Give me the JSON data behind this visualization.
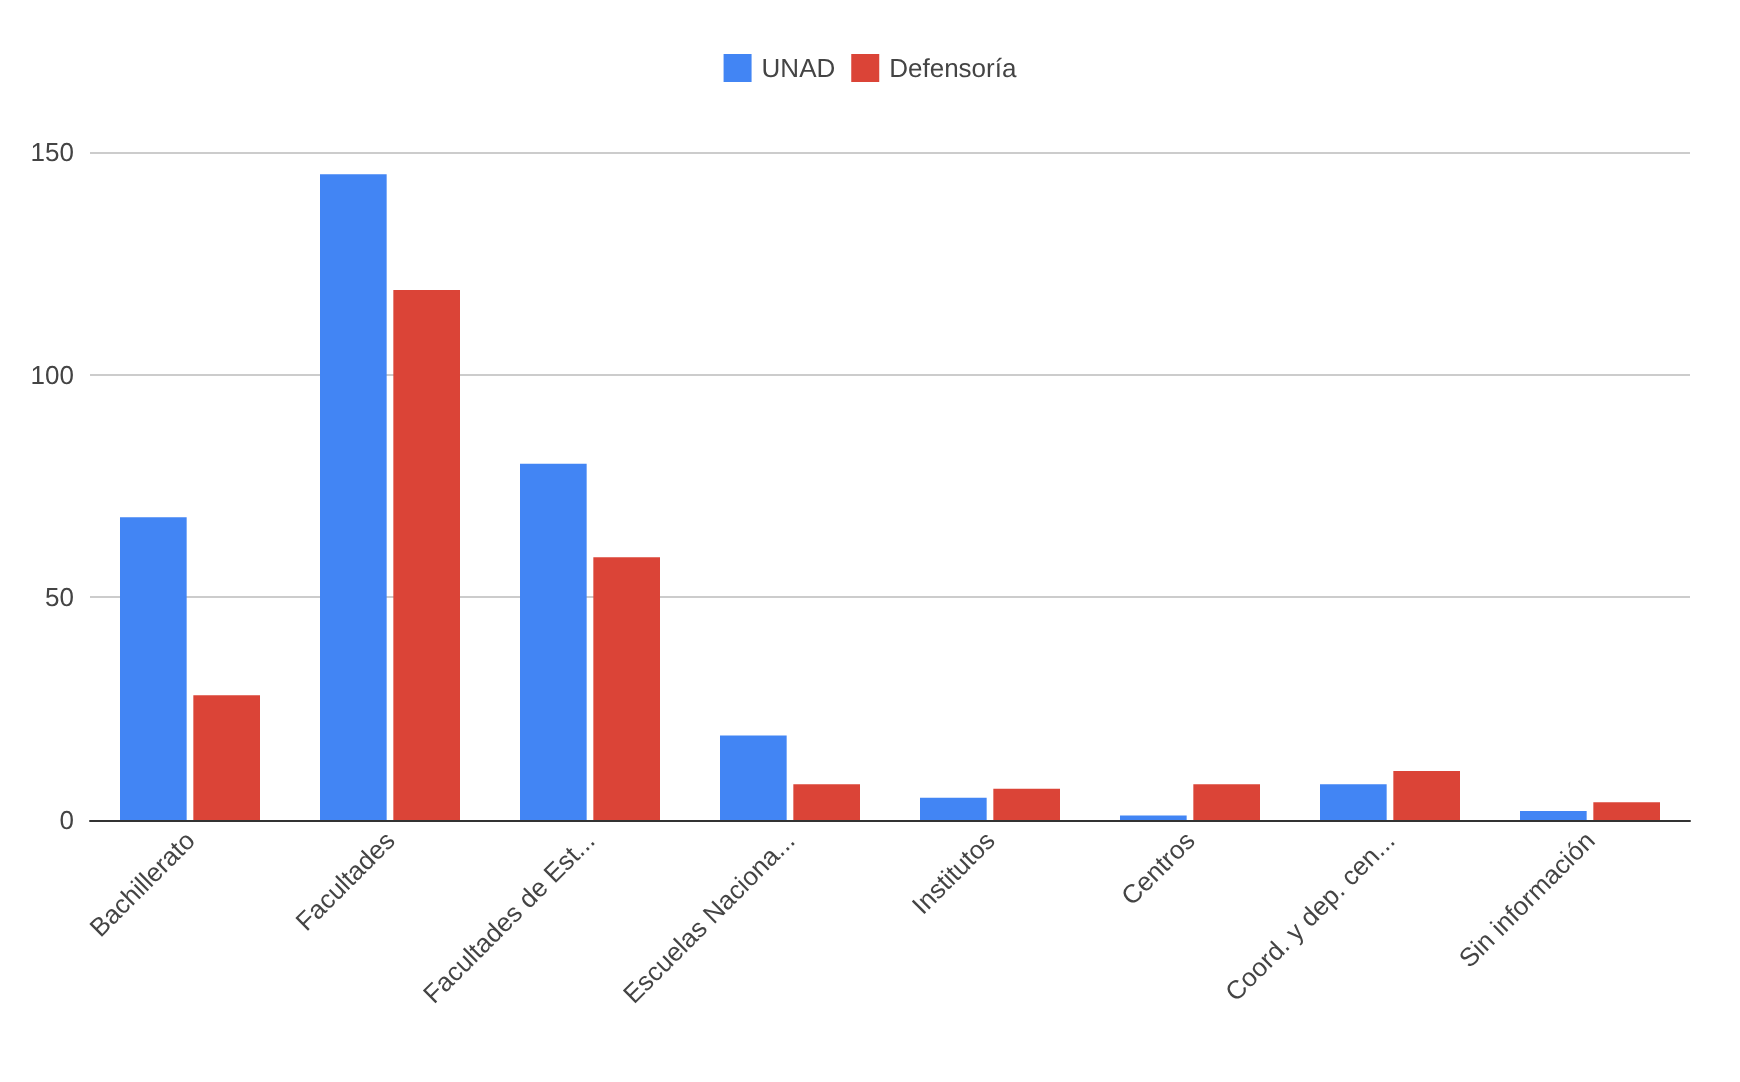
{
  "chart_data": {
    "type": "bar",
    "categories": [
      "Bachillerato",
      "Facultades",
      "Facultades de Est...",
      "Escuelas Naciona...",
      "Institutos",
      "Centros",
      "Coord. y dep. cen...",
      "Sin información"
    ],
    "series": [
      {
        "name": "UNAD",
        "color": "#4285f4",
        "values": [
          68,
          145,
          80,
          19,
          5,
          1,
          8,
          2
        ]
      },
      {
        "name": "Defensoría",
        "color": "#db4437",
        "values": [
          28,
          119,
          59,
          8,
          7,
          8,
          11,
          4
        ]
      }
    ],
    "ylim": [
      0,
      150
    ],
    "yticks": [
      0,
      50,
      100,
      150
    ],
    "grid": "y",
    "legend": "top"
  }
}
